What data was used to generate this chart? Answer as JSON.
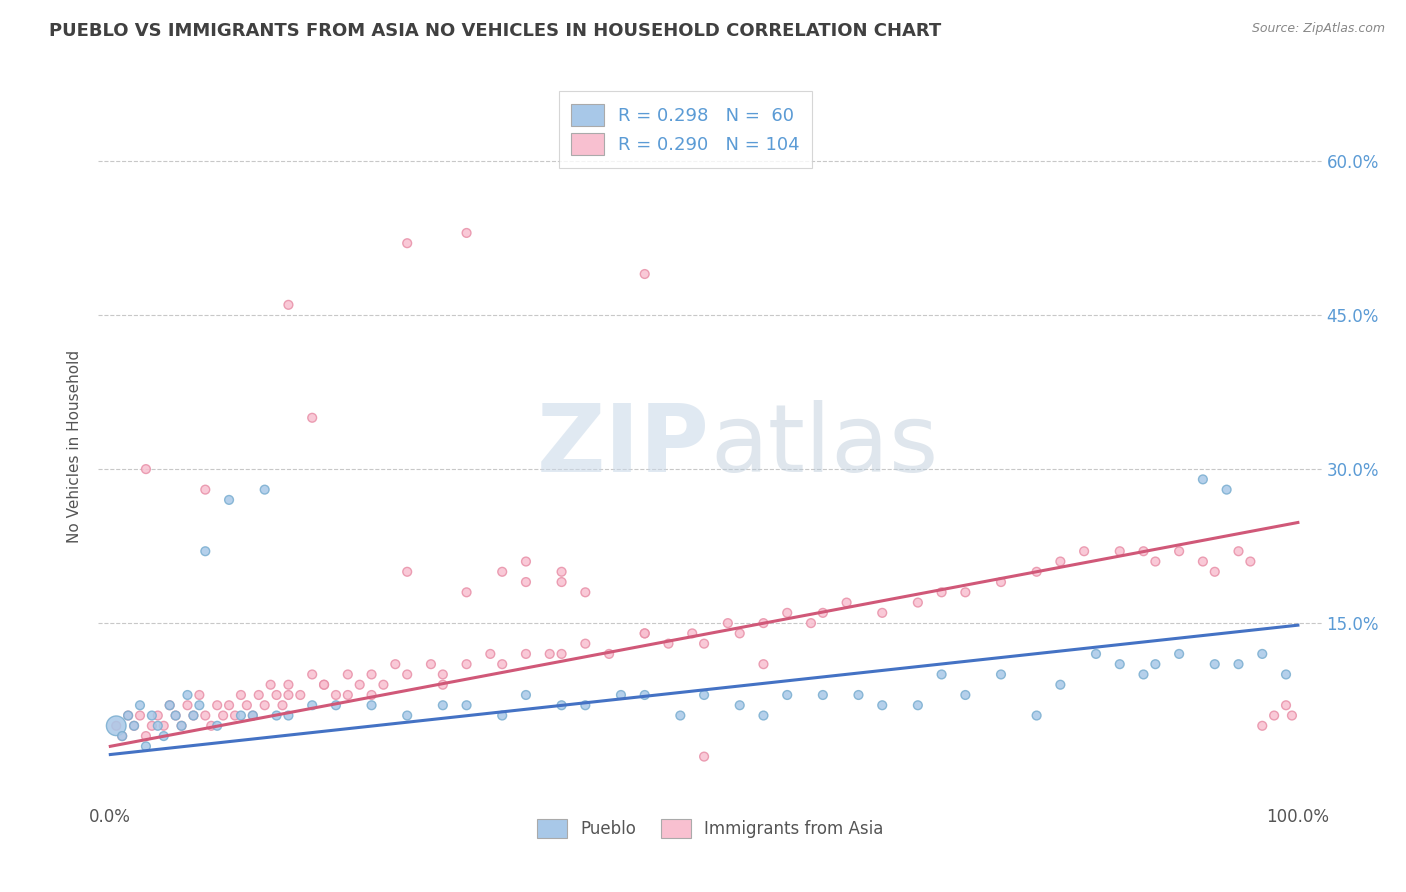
{
  "title": "PUEBLO VS IMMIGRANTS FROM ASIA NO VEHICLES IN HOUSEHOLD CORRELATION CHART",
  "source": "Source: ZipAtlas.com",
  "ylabel": "No Vehicles in Household",
  "watermark_zip": "ZIP",
  "watermark_atlas": "atlas",
  "legend_labels": [
    "Pueblo",
    "Immigrants from Asia"
  ],
  "pueblo_R": 0.298,
  "pueblo_N": 60,
  "asia_R": 0.29,
  "asia_N": 104,
  "xlim": [
    -0.01,
    1.02
  ],
  "ylim": [
    -0.025,
    0.67
  ],
  "x_ticks": [
    0.0,
    1.0
  ],
  "x_tick_labels": [
    "0.0%",
    "100.0%"
  ],
  "y_ticks": [
    0.15,
    0.3,
    0.45,
    0.6
  ],
  "y_tick_labels": [
    "15.0%",
    "30.0%",
    "45.0%",
    "60.0%"
  ],
  "pueblo_color": "#a8c8e8",
  "pueblo_edge": "#7aaed0",
  "asia_color": "#f8c0d0",
  "asia_edge": "#e890a8",
  "trend_blue": "#4472c4",
  "trend_pink": "#d05878",
  "background": "#ffffff",
  "grid_color": "#c8c8c8",
  "title_color": "#404040",
  "tick_color": "#5b9bd5",
  "pueblo_x": [
    0.005,
    0.01,
    0.015,
    0.02,
    0.025,
    0.03,
    0.035,
    0.04,
    0.045,
    0.05,
    0.055,
    0.06,
    0.065,
    0.07,
    0.075,
    0.08,
    0.09,
    0.1,
    0.11,
    0.12,
    0.13,
    0.14,
    0.15,
    0.17,
    0.19,
    0.22,
    0.25,
    0.28,
    0.3,
    0.33,
    0.35,
    0.38,
    0.4,
    0.43,
    0.45,
    0.48,
    0.5,
    0.53,
    0.55,
    0.57,
    0.6,
    0.63,
    0.65,
    0.68,
    0.7,
    0.72,
    0.75,
    0.78,
    0.8,
    0.83,
    0.85,
    0.87,
    0.88,
    0.9,
    0.92,
    0.93,
    0.94,
    0.95,
    0.97,
    0.99
  ],
  "pueblo_y": [
    0.05,
    0.04,
    0.06,
    0.05,
    0.07,
    0.03,
    0.06,
    0.05,
    0.04,
    0.07,
    0.06,
    0.05,
    0.08,
    0.06,
    0.07,
    0.22,
    0.05,
    0.27,
    0.06,
    0.06,
    0.28,
    0.06,
    0.06,
    0.07,
    0.07,
    0.07,
    0.06,
    0.07,
    0.07,
    0.06,
    0.08,
    0.07,
    0.07,
    0.08,
    0.08,
    0.06,
    0.08,
    0.07,
    0.06,
    0.08,
    0.08,
    0.08,
    0.07,
    0.07,
    0.1,
    0.08,
    0.1,
    0.06,
    0.09,
    0.12,
    0.11,
    0.1,
    0.11,
    0.12,
    0.29,
    0.11,
    0.28,
    0.11,
    0.12,
    0.1
  ],
  "pueblo_size": [
    200,
    40,
    40,
    40,
    40,
    40,
    40,
    40,
    40,
    40,
    40,
    40,
    40,
    40,
    40,
    40,
    40,
    40,
    40,
    40,
    40,
    40,
    40,
    40,
    40,
    40,
    40,
    40,
    40,
    40,
    40,
    40,
    40,
    40,
    40,
    40,
    40,
    40,
    40,
    40,
    40,
    40,
    40,
    40,
    40,
    40,
    40,
    40,
    40,
    40,
    40,
    40,
    40,
    40,
    40,
    40,
    40,
    40,
    40,
    40
  ],
  "asia_x": [
    0.005,
    0.01,
    0.015,
    0.02,
    0.025,
    0.03,
    0.035,
    0.04,
    0.045,
    0.05,
    0.055,
    0.06,
    0.065,
    0.07,
    0.075,
    0.08,
    0.085,
    0.09,
    0.095,
    0.1,
    0.105,
    0.11,
    0.115,
    0.12,
    0.125,
    0.13,
    0.135,
    0.14,
    0.145,
    0.15,
    0.16,
    0.17,
    0.18,
    0.19,
    0.2,
    0.21,
    0.22,
    0.23,
    0.24,
    0.25,
    0.27,
    0.28,
    0.3,
    0.32,
    0.33,
    0.35,
    0.37,
    0.38,
    0.4,
    0.42,
    0.45,
    0.47,
    0.49,
    0.5,
    0.52,
    0.53,
    0.55,
    0.57,
    0.59,
    0.6,
    0.62,
    0.65,
    0.68,
    0.7,
    0.72,
    0.75,
    0.78,
    0.8,
    0.82,
    0.85,
    0.87,
    0.88,
    0.9,
    0.92,
    0.93,
    0.95,
    0.96,
    0.97,
    0.98,
    0.99,
    0.995,
    0.03,
    0.08,
    0.25,
    0.45,
    0.5,
    0.55,
    0.33,
    0.35,
    0.38,
    0.2,
    0.22,
    0.28,
    0.17,
    0.15,
    0.3,
    0.35,
    0.4,
    0.45,
    0.25,
    0.3,
    0.38,
    0.15,
    0.18
  ],
  "asia_y": [
    0.05,
    0.04,
    0.06,
    0.05,
    0.06,
    0.04,
    0.05,
    0.06,
    0.05,
    0.07,
    0.06,
    0.05,
    0.07,
    0.06,
    0.08,
    0.06,
    0.05,
    0.07,
    0.06,
    0.07,
    0.06,
    0.08,
    0.07,
    0.06,
    0.08,
    0.07,
    0.09,
    0.08,
    0.07,
    0.09,
    0.08,
    0.1,
    0.09,
    0.08,
    0.1,
    0.09,
    0.1,
    0.09,
    0.11,
    0.1,
    0.11,
    0.1,
    0.11,
    0.12,
    0.11,
    0.12,
    0.12,
    0.12,
    0.13,
    0.12,
    0.14,
    0.13,
    0.14,
    0.13,
    0.15,
    0.14,
    0.15,
    0.16,
    0.15,
    0.16,
    0.17,
    0.16,
    0.17,
    0.18,
    0.18,
    0.19,
    0.2,
    0.21,
    0.22,
    0.22,
    0.22,
    0.21,
    0.22,
    0.21,
    0.2,
    0.22,
    0.21,
    0.05,
    0.06,
    0.07,
    0.06,
    0.3,
    0.28,
    0.2,
    0.14,
    0.02,
    0.11,
    0.2,
    0.21,
    0.2,
    0.08,
    0.08,
    0.09,
    0.35,
    0.46,
    0.18,
    0.19,
    0.18,
    0.49,
    0.52,
    0.53,
    0.19,
    0.08,
    0.09
  ],
  "asia_size": [
    40,
    40,
    40,
    40,
    40,
    40,
    40,
    40,
    40,
    40,
    40,
    40,
    40,
    40,
    40,
    40,
    40,
    40,
    40,
    40,
    40,
    40,
    40,
    40,
    40,
    40,
    40,
    40,
    40,
    40,
    40,
    40,
    40,
    40,
    40,
    40,
    40,
    40,
    40,
    40,
    40,
    40,
    40,
    40,
    40,
    40,
    40,
    40,
    40,
    40,
    40,
    40,
    40,
    40,
    40,
    40,
    40,
    40,
    40,
    40,
    40,
    40,
    40,
    40,
    40,
    40,
    40,
    40,
    40,
    40,
    40,
    40,
    40,
    40,
    40,
    40,
    40,
    40,
    40,
    40,
    40,
    40,
    40,
    40,
    40,
    40,
    40,
    40,
    40,
    40,
    40,
    40,
    40,
    40,
    40,
    40,
    40,
    40,
    40,
    40,
    40,
    40,
    40,
    40
  ],
  "pueblo_trend": [
    0.022,
    0.148
  ],
  "asia_trend": [
    0.03,
    0.248
  ]
}
